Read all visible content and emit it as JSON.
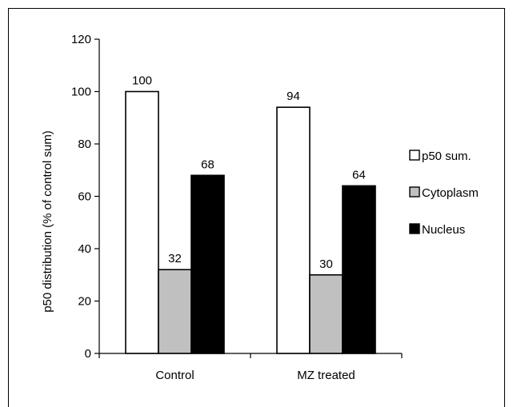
{
  "chart_data": {
    "type": "bar",
    "title": "",
    "xlabel": "",
    "ylabel": "p50 distribution (% of control sum)",
    "ylim": [
      0,
      120
    ],
    "yticks": [
      0,
      20,
      40,
      60,
      80,
      100,
      120
    ],
    "categories": [
      "Control",
      "MZ treated"
    ],
    "series": [
      {
        "name": "p50 sum.",
        "values": [
          100,
          94
        ],
        "color": "#ffffff"
      },
      {
        "name": "Cytoplasm",
        "values": [
          32,
          30
        ],
        "color": "#c0c0c0"
      },
      {
        "name": "Nucleus",
        "values": [
          68,
          64
        ],
        "color": "#000000"
      }
    ],
    "data_labels": true,
    "grid": false,
    "legend_position": "right"
  }
}
